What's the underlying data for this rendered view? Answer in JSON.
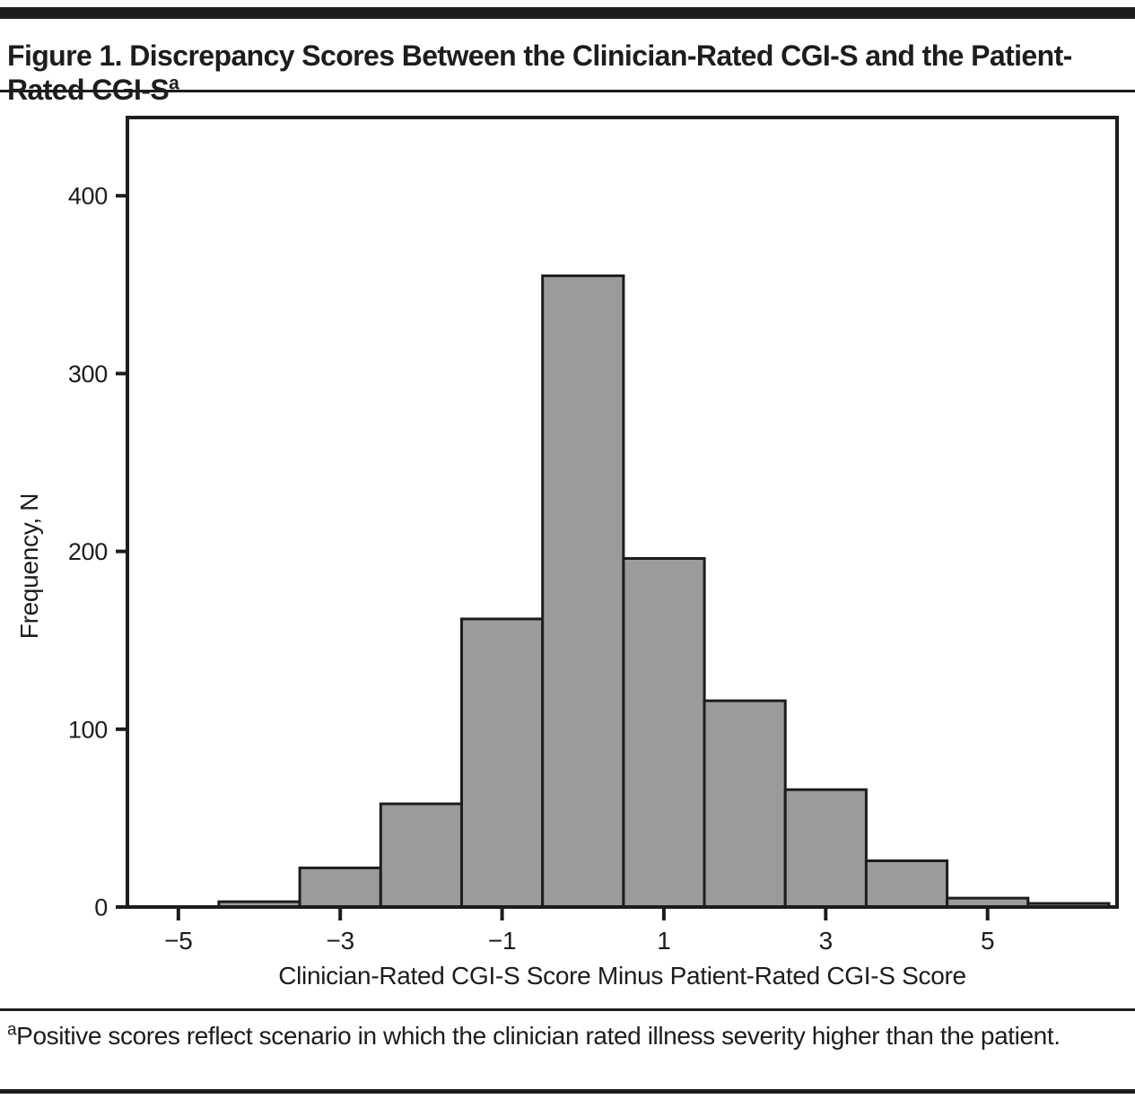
{
  "figure": {
    "label_and_title": "Figure 1. Discrepancy Scores Between the Clinician-Rated CGI-S and the Patient-Rated CGI-S",
    "title_superscript": "a",
    "footnote_marker": "a",
    "footnote_text": "Positive scores reflect scenario in which the clinician rated illness severity higher than the patient.",
    "rule_color": "#1d1d1d",
    "text_color": "#1d1d1d"
  },
  "chart_data": {
    "type": "bar",
    "title": "",
    "xlabel": "Clinician-Rated CGI-S Score Minus Patient-Rated CGI-S Score",
    "ylabel": "Frequency, N",
    "categories": [
      -4,
      -3,
      -2,
      -1,
      0,
      1,
      2,
      3,
      4,
      5,
      6
    ],
    "values": [
      3,
      22,
      58,
      162,
      355,
      196,
      116,
      66,
      26,
      5,
      2
    ],
    "bar_width": 1,
    "xticks": [
      -5,
      -3,
      -1,
      1,
      3,
      5
    ],
    "xtick_labels": [
      "−5",
      "−3",
      "−1",
      "1",
      "3",
      "5"
    ],
    "yticks": [
      0,
      100,
      200,
      300,
      400
    ],
    "ytick_labels": [
      "0",
      "100",
      "200",
      "300",
      "400"
    ],
    "xlim": [
      -5.63,
      6.6
    ],
    "ylim": [
      0,
      444
    ],
    "grid": false,
    "legend": "none",
    "bar_fill": "#9b9b9b",
    "bar_stroke": "#1d1d1d",
    "axis_color": "#1d1d1d"
  }
}
